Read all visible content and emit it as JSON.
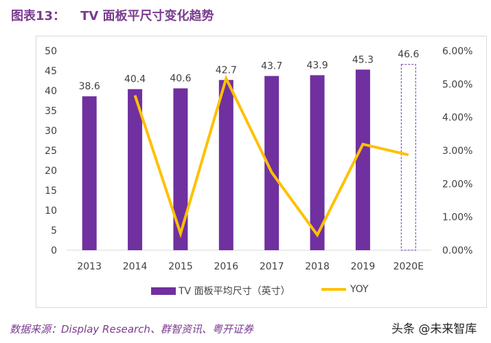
{
  "title": {
    "label": "图表13：",
    "text": "TV 面板平尺寸变化趋势"
  },
  "source": "数据来源：Display Research、群智资讯、粤开证券",
  "watermark": "头条 @未来智库",
  "colors": {
    "bar": "#7030a0",
    "line": "#ffc000",
    "title": "#7a3b8f"
  },
  "chart_data": {
    "type": "bar+line",
    "categories": [
      "2013",
      "2014",
      "2015",
      "2016",
      "2017",
      "2018",
      "2019",
      "2020E"
    ],
    "series": [
      {
        "name": "TV 面板平均尺寸（英寸）",
        "type": "bar",
        "axis": "left",
        "values": [
          38.6,
          40.4,
          40.6,
          42.7,
          43.7,
          43.9,
          45.3,
          46.6
        ],
        "labels": [
          "38.6",
          "40.4",
          "40.6",
          "42.7",
          "43.7",
          "43.9",
          "45.3",
          "46.6"
        ],
        "forecast_index": 7
      },
      {
        "name": "YOY",
        "type": "line",
        "axis": "right",
        "values": [
          null,
          4.66,
          0.5,
          5.17,
          2.34,
          0.46,
          3.19,
          2.87
        ]
      }
    ],
    "left_axis": {
      "ylim": [
        0,
        50
      ],
      "ticks": [
        "0",
        "5",
        "10",
        "15",
        "20",
        "25",
        "30",
        "35",
        "40",
        "45",
        "50"
      ]
    },
    "right_axis": {
      "ylim": [
        0,
        6
      ],
      "unit": "%",
      "ticks": [
        "0.00%",
        "1.00%",
        "2.00%",
        "3.00%",
        "4.00%",
        "5.00%",
        "6.00%"
      ]
    },
    "legend": "bottom",
    "grid": false
  }
}
